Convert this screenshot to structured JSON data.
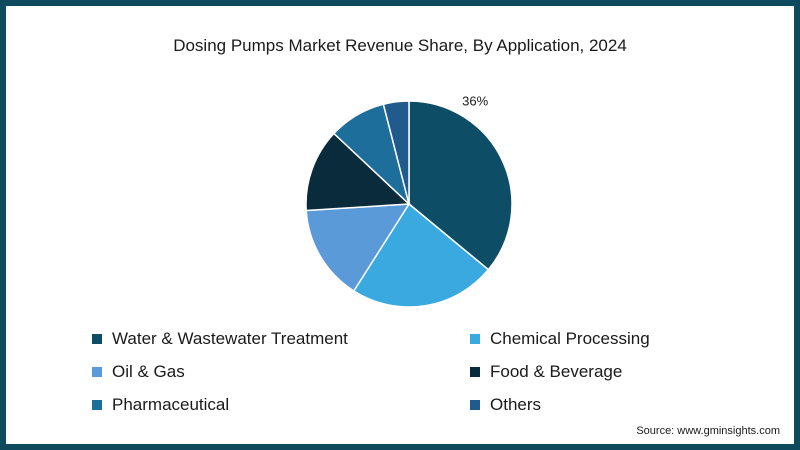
{
  "chart_data": {
    "type": "pie",
    "title": "Dosing Pumps Market Revenue Share, By Application, 2024",
    "slices": [
      {
        "name": "Water & Wastewater Treatment",
        "value": 36,
        "color": "#0d4d66",
        "label": "36%"
      },
      {
        "name": "Chemical Processing",
        "value": 23,
        "color": "#3aa9e0",
        "label": ""
      },
      {
        "name": "Oil & Gas",
        "value": 15,
        "color": "#5b9ad9",
        "label": ""
      },
      {
        "name": "Food & Beverage",
        "value": 13,
        "color": "#0a2b3b",
        "label": ""
      },
      {
        "name": "Pharmaceutical",
        "value": 9,
        "color": "#1d6e9a",
        "label": ""
      },
      {
        "name": "Others",
        "value": 4,
        "color": "#215a8c",
        "label": ""
      }
    ],
    "legend_position": "bottom",
    "source": "Source: www.gminsights.com"
  }
}
